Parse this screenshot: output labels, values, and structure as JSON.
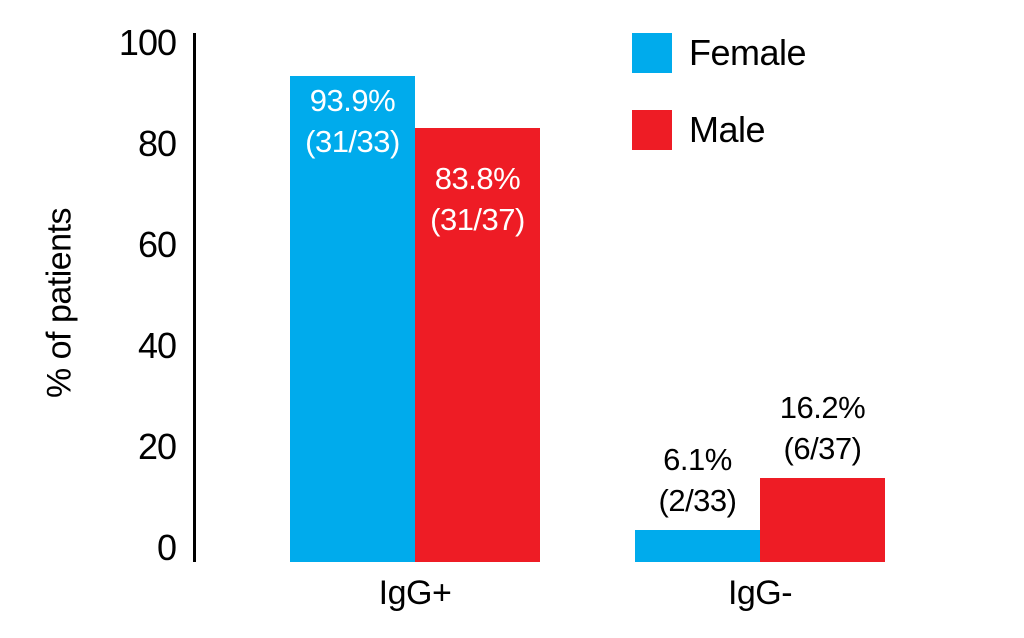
{
  "chart_data": {
    "type": "bar",
    "title": "",
    "xlabel": "",
    "ylabel": "% of patients",
    "ylim": [
      0,
      100
    ],
    "yticks": [
      0,
      20,
      40,
      60,
      80,
      100
    ],
    "grid": false,
    "categories": [
      "IgG+",
      "IgG-"
    ],
    "series": [
      {
        "name": "Female",
        "color": "#00ABEC",
        "values": [
          93.9,
          6.1
        ],
        "labels": [
          {
            "pct": "93.9%",
            "frac": "(31/33)",
            "placement": "inside"
          },
          {
            "pct": "6.1%",
            "frac": "(2/33)",
            "placement": "above"
          }
        ]
      },
      {
        "name": "Male",
        "color": "#EE1C25",
        "values": [
          83.8,
          16.2
        ],
        "labels": [
          {
            "pct": "83.8%",
            "frac": "(31/37)",
            "placement": "inside"
          },
          {
            "pct": "16.2%",
            "frac": "(6/37)",
            "placement": "above"
          }
        ]
      }
    ],
    "legend": {
      "position": "top-right",
      "entries": [
        {
          "label": "Female",
          "color": "#00ABEC"
        },
        {
          "label": "Male",
          "color": "#EE1C25"
        }
      ]
    },
    "inside_label_color": "#FFFFFF",
    "above_label_color": "#000000",
    "axis_color": "#000000"
  }
}
